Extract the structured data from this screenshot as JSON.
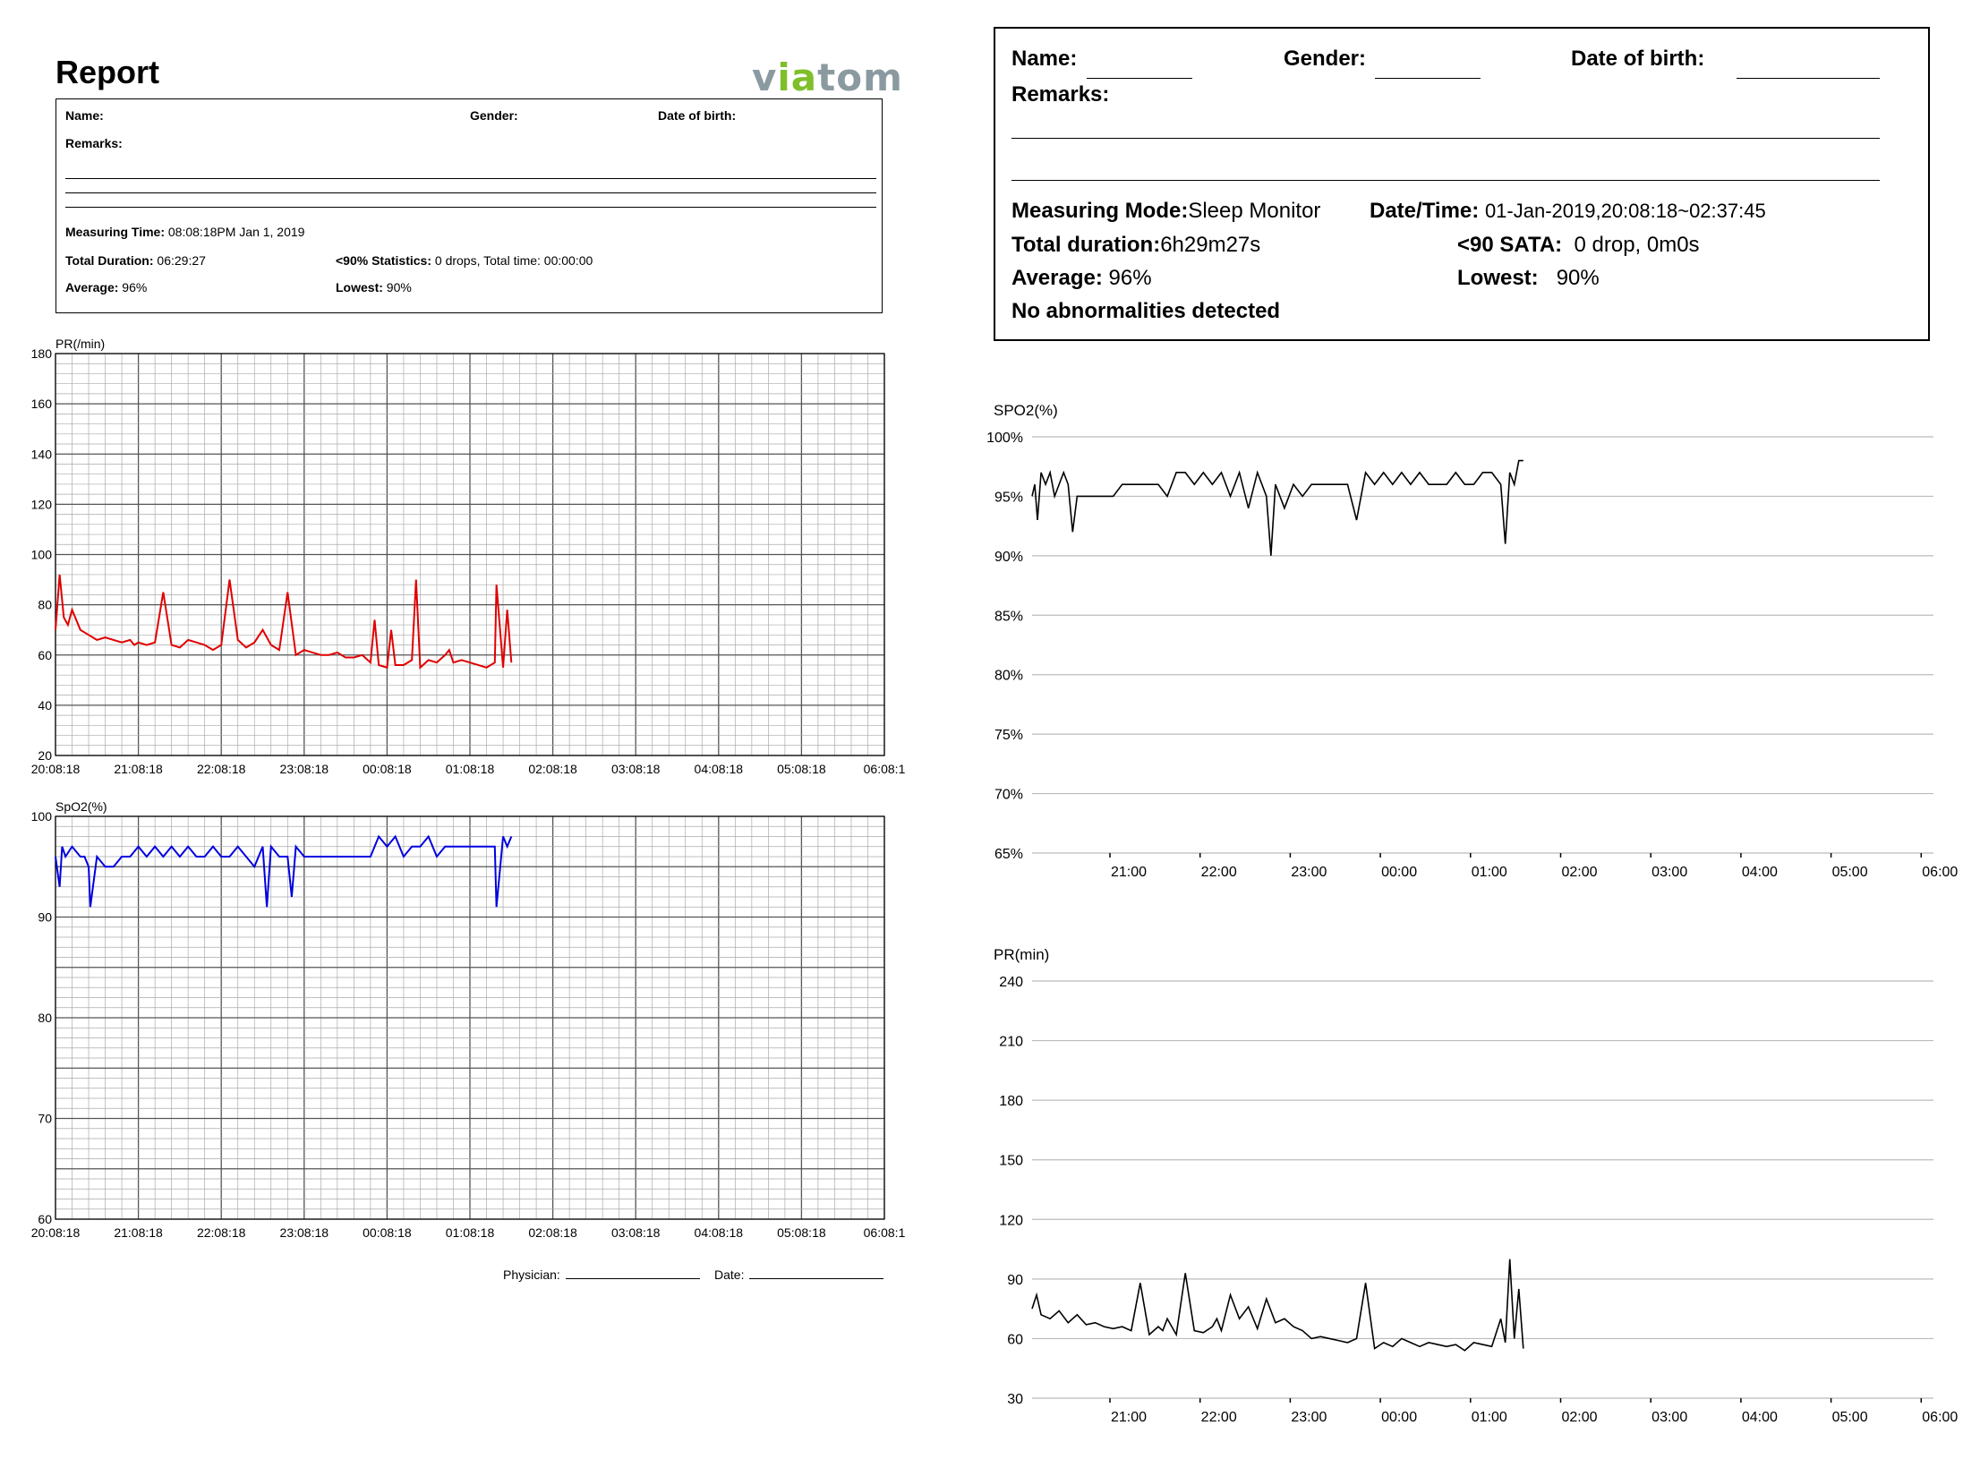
{
  "left_report": {
    "title": "Report",
    "logo_pre": "v",
    "logo_ia": "ia",
    "logo_post": "tom",
    "name_label": "Name:",
    "gender_label": "Gender:",
    "dob_label": "Date of birth:",
    "remarks_label": "Remarks:",
    "measuring_time_label": "Measuring Time:",
    "measuring_time_value": "08:08:18PM Jan 1, 2019",
    "total_duration_label": "Total Duration:",
    "total_duration_value": "06:29:27",
    "stats_label": "<90% Statistics:",
    "stats_value": "0 drops, Total time: 00:00:00",
    "average_label": "Average:",
    "average_value": "96%",
    "lowest_label": "Lowest:",
    "lowest_value": "90%",
    "physician_label": "Physician:",
    "date_label": "Date:"
  },
  "right_report": {
    "name_label": "Name:",
    "gender_label": "Gender:",
    "dob_label": "Date of birth:",
    "remarks_label": "Remarks:",
    "mode_label": "Measuring Mode:",
    "mode_value": "Sleep Monitor",
    "datetime_label": "Date/Time:",
    "datetime_value": "01-Jan-2019,20:08:18~02:37:45",
    "duration_label": "Total duration:",
    "duration_value": "6h29m27s",
    "sata_label": "<90 SATA:",
    "sata_value": "0 drop, 0m0s",
    "average_label": "Average:",
    "average_value": "96%",
    "lowest_label": "Lowest:",
    "lowest_value": "90%",
    "abnormal": "No abnormalities detected"
  },
  "chart_data": [
    {
      "id": "left-pr",
      "type": "line",
      "title": "PR(/min)",
      "color": "#e00000",
      "ylim": [
        20,
        180
      ],
      "yticks": [
        20,
        40,
        60,
        80,
        100,
        120,
        140,
        160,
        180
      ],
      "xticks": [
        "20:08:18",
        "21:08:18",
        "22:08:18",
        "23:08:18",
        "00:08:18",
        "01:08:18",
        "02:08:18",
        "03:08:18",
        "04:08:18",
        "05:08:18",
        "06:08:1"
      ],
      "xlim_hours": [
        0,
        10
      ],
      "grid": true,
      "series": [
        {
          "x": [
            0,
            0.05,
            0.1,
            0.15,
            0.2,
            0.3,
            0.4,
            0.5,
            0.6,
            0.7,
            0.8,
            0.9,
            0.95,
            1.0,
            1.1,
            1.2,
            1.3,
            1.4,
            1.5,
            1.6,
            1.7,
            1.8,
            1.9,
            2.0,
            2.1,
            2.2,
            2.3,
            2.4,
            2.5,
            2.6,
            2.7,
            2.8,
            2.9,
            3.0,
            3.1,
            3.2,
            3.3,
            3.4,
            3.5,
            3.6,
            3.7,
            3.8,
            3.85,
            3.9,
            4.0,
            4.05,
            4.1,
            4.2,
            4.3,
            4.35,
            4.4,
            4.5,
            4.6,
            4.7,
            4.75,
            4.8,
            4.9,
            5.0,
            5.1,
            5.2,
            5.3,
            5.32,
            5.4,
            5.45,
            5.5
          ],
          "y": [
            70,
            92,
            75,
            72,
            78,
            70,
            68,
            66,
            67,
            66,
            65,
            66,
            64,
            65,
            64,
            65,
            85,
            64,
            63,
            66,
            65,
            64,
            62,
            64,
            90,
            66,
            63,
            65,
            70,
            64,
            62,
            85,
            60,
            62,
            61,
            60,
            60,
            61,
            59,
            59,
            60,
            57,
            74,
            56,
            55,
            70,
            56,
            56,
            58,
            90,
            55,
            58,
            57,
            60,
            62,
            57,
            58,
            57,
            56,
            55,
            57,
            88,
            55,
            78,
            57
          ]
        }
      ]
    },
    {
      "id": "left-spo2",
      "type": "line",
      "title": "SpO2(%)",
      "color": "#0000e0",
      "ylim": [
        60,
        100
      ],
      "yticks": [
        60,
        70,
        80,
        90,
        100
      ],
      "xticks": [
        "20:08:18",
        "21:08:18",
        "22:08:18",
        "23:08:18",
        "00:08:18",
        "01:08:18",
        "02:08:18",
        "03:08:18",
        "04:08:18",
        "05:08:18",
        "06:08:1"
      ],
      "xlim_hours": [
        0,
        10
      ],
      "grid": true,
      "series": [
        {
          "x": [
            0,
            0.05,
            0.08,
            0.12,
            0.2,
            0.3,
            0.35,
            0.4,
            0.42,
            0.5,
            0.6,
            0.7,
            0.8,
            0.9,
            1.0,
            1.1,
            1.2,
            1.3,
            1.4,
            1.5,
            1.6,
            1.7,
            1.8,
            1.9,
            2.0,
            2.1,
            2.2,
            2.3,
            2.4,
            2.5,
            2.55,
            2.6,
            2.7,
            2.8,
            2.85,
            2.9,
            3.0,
            3.1,
            3.2,
            3.3,
            3.4,
            3.5,
            3.6,
            3.7,
            3.8,
            3.9,
            4.0,
            4.1,
            4.2,
            4.3,
            4.4,
            4.5,
            4.6,
            4.7,
            4.8,
            4.9,
            5.0,
            5.1,
            5.2,
            5.3,
            5.32,
            5.4,
            5.45,
            5.5
          ],
          "y": [
            96,
            93,
            97,
            96,
            97,
            96,
            96,
            95,
            91,
            96,
            95,
            95,
            96,
            96,
            97,
            96,
            97,
            96,
            97,
            96,
            97,
            96,
            96,
            97,
            96,
            96,
            97,
            96,
            95,
            97,
            91,
            97,
            96,
            96,
            92,
            97,
            96,
            96,
            96,
            96,
            96,
            96,
            96,
            96,
            96,
            98,
            97,
            98,
            96,
            97,
            97,
            98,
            96,
            97,
            97,
            97,
            97,
            97,
            97,
            97,
            91,
            98,
            97,
            98
          ]
        }
      ]
    },
    {
      "id": "right-spo2",
      "type": "line",
      "title": "SPO2(%)",
      "color": "#000000",
      "ylim": [
        65,
        100
      ],
      "yticks": [
        "65%",
        "70%",
        "75%",
        "80%",
        "85%",
        "90%",
        "95%",
        "100%"
      ],
      "xticks": [
        "21:00",
        "22:00",
        "23:00",
        "00:00",
        "01:00",
        "02:00",
        "03:00",
        "04:00",
        "05:00",
        "06:00"
      ],
      "grid": true,
      "series": [
        {
          "x": [
            0,
            0.03,
            0.06,
            0.1,
            0.15,
            0.2,
            0.25,
            0.3,
            0.35,
            0.4,
            0.45,
            0.5,
            0.6,
            0.7,
            0.8,
            0.9,
            1.0,
            1.1,
            1.2,
            1.3,
            1.4,
            1.5,
            1.6,
            1.7,
            1.8,
            1.9,
            2.0,
            2.1,
            2.2,
            2.3,
            2.4,
            2.5,
            2.6,
            2.65,
            2.7,
            2.8,
            2.9,
            3.0,
            3.1,
            3.2,
            3.3,
            3.4,
            3.5,
            3.6,
            3.7,
            3.8,
            3.9,
            4.0,
            4.1,
            4.2,
            4.3,
            4.4,
            4.5,
            4.6,
            4.7,
            4.8,
            4.9,
            5.0,
            5.1,
            5.2,
            5.25,
            5.3,
            5.35,
            5.4,
            5.45
          ],
          "y": [
            95,
            96,
            93,
            97,
            96,
            97,
            95,
            96,
            97,
            96,
            92,
            95,
            95,
            95,
            95,
            95,
            96,
            96,
            96,
            96,
            96,
            95,
            97,
            97,
            96,
            97,
            96,
            97,
            95,
            97,
            94,
            97,
            95,
            90,
            96,
            94,
            96,
            95,
            96,
            96,
            96,
            96,
            96,
            93,
            97,
            96,
            97,
            96,
            97,
            96,
            97,
            96,
            96,
            96,
            97,
            96,
            96,
            97,
            97,
            96,
            91,
            97,
            96,
            98,
            98
          ]
        }
      ]
    },
    {
      "id": "right-pr",
      "type": "line",
      "title": "PR(min)",
      "color": "#000000",
      "ylim": [
        30,
        240
      ],
      "yticks": [
        30,
        60,
        90,
        120,
        150,
        180,
        210,
        240
      ],
      "xticks": [
        "21:00",
        "22:00",
        "23:00",
        "00:00",
        "01:00",
        "02:00",
        "03:00",
        "04:00",
        "05:00",
        "06:00"
      ],
      "grid": true,
      "series": [
        {
          "x": [
            0,
            0.05,
            0.1,
            0.2,
            0.3,
            0.4,
            0.5,
            0.6,
            0.7,
            0.8,
            0.9,
            1.0,
            1.1,
            1.2,
            1.3,
            1.4,
            1.45,
            1.5,
            1.6,
            1.7,
            1.8,
            1.9,
            2.0,
            2.05,
            2.1,
            2.2,
            2.3,
            2.4,
            2.5,
            2.6,
            2.7,
            2.8,
            2.9,
            3.0,
            3.1,
            3.2,
            3.3,
            3.4,
            3.5,
            3.6,
            3.7,
            3.8,
            3.9,
            4.0,
            4.1,
            4.2,
            4.3,
            4.4,
            4.5,
            4.6,
            4.7,
            4.8,
            4.9,
            5.0,
            5.1,
            5.2,
            5.25,
            5.3,
            5.35,
            5.4,
            5.45
          ],
          "y": [
            75,
            82,
            72,
            70,
            74,
            68,
            72,
            67,
            68,
            66,
            65,
            66,
            64,
            88,
            62,
            66,
            64,
            70,
            62,
            93,
            64,
            63,
            66,
            70,
            64,
            82,
            70,
            76,
            65,
            80,
            68,
            70,
            66,
            64,
            60,
            61,
            60,
            59,
            58,
            60,
            88,
            55,
            58,
            56,
            60,
            58,
            56,
            58,
            57,
            56,
            57,
            54,
            58,
            57,
            56,
            70,
            58,
            100,
            60,
            85,
            55
          ]
        }
      ]
    }
  ]
}
